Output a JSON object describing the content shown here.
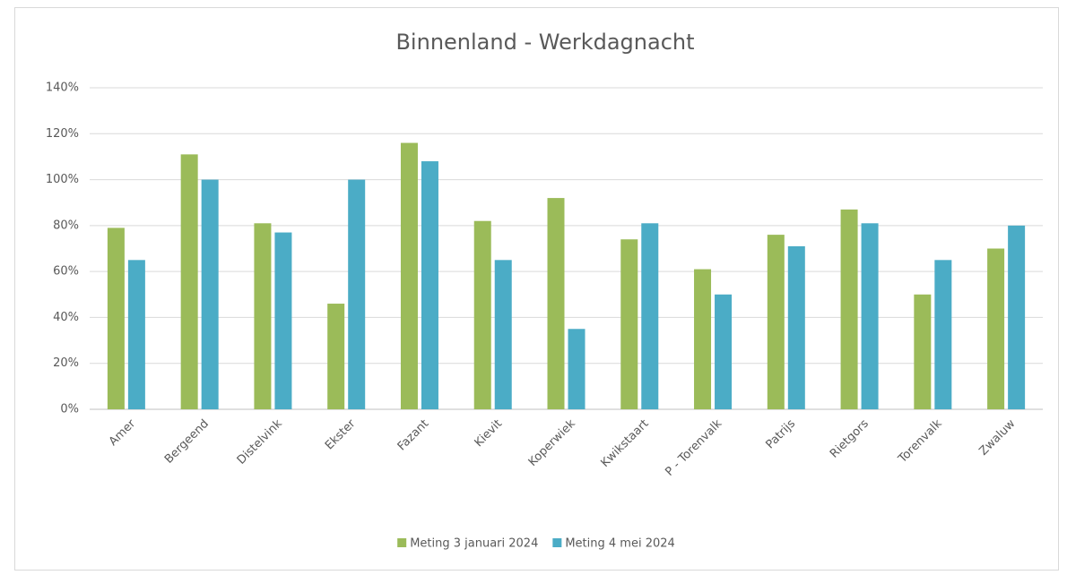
{
  "chart_data": {
    "type": "bar",
    "title": "Binnenland - Werkdagnacht",
    "categories": [
      "Amer",
      "Bergeend",
      "Distelvink",
      "Ekster",
      "Fazant",
      "Kievit",
      "Koperwiek",
      "Kwikstaart",
      "P - Torenvalk",
      "Patrijs",
      "Rietgors",
      "Torenvalk",
      "Zwaluw"
    ],
    "series": [
      {
        "name": "Meting 3 januari 2024",
        "color": "#9bbb59",
        "values": [
          79,
          111,
          81,
          46,
          116,
          82,
          92,
          74,
          61,
          76,
          87,
          50,
          70
        ]
      },
      {
        "name": "Meting 4 mei 2024",
        "color": "#4bacc6",
        "values": [
          65,
          100,
          77,
          100,
          108,
          65,
          35,
          81,
          50,
          71,
          81,
          65,
          80
        ]
      }
    ],
    "ylim": [
      0,
      140
    ],
    "yticks": [
      {
        "value": 0,
        "label": "0%"
      },
      {
        "value": 20,
        "label": "20%"
      },
      {
        "value": 40,
        "label": "40%"
      },
      {
        "value": 60,
        "label": "60%"
      },
      {
        "value": 80,
        "label": "80%"
      },
      {
        "value": 100,
        "label": "100%"
      },
      {
        "value": 120,
        "label": "120%"
      },
      {
        "value": 140,
        "label": "140%"
      }
    ],
    "grid": true,
    "legend": "bottom"
  }
}
